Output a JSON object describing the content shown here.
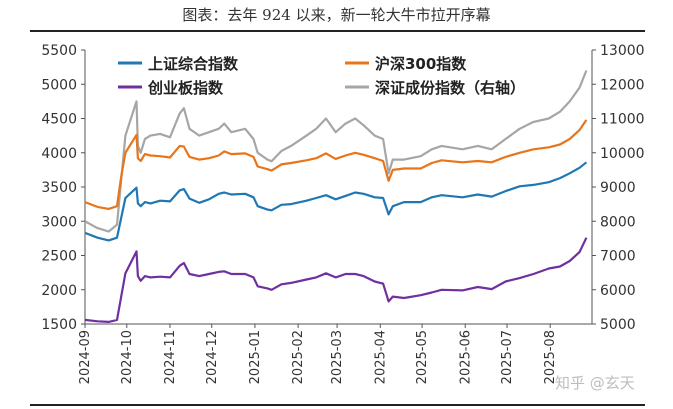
{
  "chart_data": {
    "type": "line",
    "title": "图表：去年 924 以来，新一轮大牛市拉开序幕",
    "y_left": {
      "ticks": [
        "5500",
        "5000",
        "4500",
        "4000",
        "3500",
        "3000",
        "2500",
        "2000",
        "1500"
      ],
      "ylim": [
        1500,
        5500
      ]
    },
    "y_right": {
      "ticks": [
        "13000",
        "12000",
        "11000",
        "10000",
        "9000",
        "8000",
        "7000",
        "6000",
        "5000"
      ],
      "ylim": [
        5000,
        13000
      ]
    },
    "x_ticks": [
      "2024-09",
      "2024-10",
      "2024-11",
      "2024-12",
      "2025-01",
      "2025-02",
      "2025-03",
      "2025-04",
      "2025-05",
      "2025-06",
      "2025-07",
      "2025-08"
    ],
    "legend_placement": "top",
    "grid": false,
    "series": [
      {
        "name": "上证综合指数",
        "axis": "left",
        "color": "#1f77b4",
        "points": [
          [
            "2024-09-01",
            2830
          ],
          [
            "2024-09-10",
            2760
          ],
          [
            "2024-09-18",
            2720
          ],
          [
            "2024-09-24",
            2760
          ],
          [
            "2024-09-27",
            3050
          ],
          [
            "2024-09-30",
            3340
          ],
          [
            "2024-10-08",
            3490
          ],
          [
            "2024-10-09",
            3260
          ],
          [
            "2024-10-11",
            3220
          ],
          [
            "2024-10-14",
            3280
          ],
          [
            "2024-10-18",
            3260
          ],
          [
            "2024-10-25",
            3300
          ],
          [
            "2024-11-01",
            3290
          ],
          [
            "2024-11-08",
            3450
          ],
          [
            "2024-11-11",
            3470
          ],
          [
            "2024-11-15",
            3330
          ],
          [
            "2024-11-22",
            3270
          ],
          [
            "2024-11-29",
            3320
          ],
          [
            "2024-12-06",
            3400
          ],
          [
            "2024-12-10",
            3420
          ],
          [
            "2024-12-15",
            3390
          ],
          [
            "2024-12-25",
            3400
          ],
          [
            "2024-12-31",
            3350
          ],
          [
            "2025-01-03",
            3220
          ],
          [
            "2025-01-10",
            3170
          ],
          [
            "2025-01-13",
            3160
          ],
          [
            "2025-01-20",
            3240
          ],
          [
            "2025-01-27",
            3250
          ],
          [
            "2025-02-07",
            3300
          ],
          [
            "2025-02-14",
            3340
          ],
          [
            "2025-02-21",
            3380
          ],
          [
            "2025-02-28",
            3320
          ],
          [
            "2025-03-07",
            3370
          ],
          [
            "2025-03-14",
            3420
          ],
          [
            "2025-03-20",
            3400
          ],
          [
            "2025-03-28",
            3350
          ],
          [
            "2025-04-03",
            3340
          ],
          [
            "2025-04-07",
            3100
          ],
          [
            "2025-04-10",
            3220
          ],
          [
            "2025-04-18",
            3280
          ],
          [
            "2025-04-30",
            3280
          ],
          [
            "2025-05-08",
            3350
          ],
          [
            "2025-05-15",
            3380
          ],
          [
            "2025-05-30",
            3350
          ],
          [
            "2025-06-10",
            3390
          ],
          [
            "2025-06-20",
            3360
          ],
          [
            "2025-06-30",
            3440
          ],
          [
            "2025-07-10",
            3510
          ],
          [
            "2025-07-20",
            3530
          ],
          [
            "2025-07-31",
            3570
          ],
          [
            "2025-08-08",
            3630
          ],
          [
            "2025-08-15",
            3700
          ],
          [
            "2025-08-22",
            3780
          ],
          [
            "2025-08-27",
            3860
          ]
        ]
      },
      {
        "name": "沪深300指数",
        "axis": "left",
        "color": "#e8751a",
        "points": [
          [
            "2024-09-01",
            3280
          ],
          [
            "2024-09-10",
            3210
          ],
          [
            "2024-09-18",
            3180
          ],
          [
            "2024-09-24",
            3220
          ],
          [
            "2024-09-27",
            3650
          ],
          [
            "2024-09-30",
            4000
          ],
          [
            "2024-10-08",
            4260
          ],
          [
            "2024-10-09",
            3920
          ],
          [
            "2024-10-11",
            3880
          ],
          [
            "2024-10-14",
            3980
          ],
          [
            "2024-10-18",
            3960
          ],
          [
            "2024-10-25",
            3950
          ],
          [
            "2024-11-01",
            3930
          ],
          [
            "2024-11-08",
            4100
          ],
          [
            "2024-11-11",
            4090
          ],
          [
            "2024-11-15",
            3940
          ],
          [
            "2024-11-22",
            3900
          ],
          [
            "2024-11-29",
            3920
          ],
          [
            "2024-12-06",
            3960
          ],
          [
            "2024-12-10",
            4020
          ],
          [
            "2024-12-15",
            3980
          ],
          [
            "2024-12-25",
            3990
          ],
          [
            "2024-12-31",
            3940
          ],
          [
            "2025-01-03",
            3800
          ],
          [
            "2025-01-10",
            3760
          ],
          [
            "2025-01-13",
            3740
          ],
          [
            "2025-01-20",
            3830
          ],
          [
            "2025-01-27",
            3850
          ],
          [
            "2025-02-07",
            3890
          ],
          [
            "2025-02-14",
            3920
          ],
          [
            "2025-02-21",
            3990
          ],
          [
            "2025-02-28",
            3910
          ],
          [
            "2025-03-07",
            3960
          ],
          [
            "2025-03-14",
            4000
          ],
          [
            "2025-03-20",
            3970
          ],
          [
            "2025-03-28",
            3920
          ],
          [
            "2025-04-03",
            3880
          ],
          [
            "2025-04-07",
            3590
          ],
          [
            "2025-04-10",
            3750
          ],
          [
            "2025-04-18",
            3770
          ],
          [
            "2025-04-30",
            3770
          ],
          [
            "2025-05-08",
            3850
          ],
          [
            "2025-05-15",
            3890
          ],
          [
            "2025-05-30",
            3860
          ],
          [
            "2025-06-10",
            3880
          ],
          [
            "2025-06-20",
            3860
          ],
          [
            "2025-06-30",
            3940
          ],
          [
            "2025-07-10",
            4000
          ],
          [
            "2025-07-20",
            4050
          ],
          [
            "2025-07-31",
            4080
          ],
          [
            "2025-08-08",
            4120
          ],
          [
            "2025-08-15",
            4200
          ],
          [
            "2025-08-22",
            4330
          ],
          [
            "2025-08-27",
            4480
          ]
        ]
      },
      {
        "name": "创业板指数",
        "axis": "left",
        "color": "#7030a0",
        "points": [
          [
            "2024-09-01",
            1560
          ],
          [
            "2024-09-10",
            1540
          ],
          [
            "2024-09-18",
            1530
          ],
          [
            "2024-09-24",
            1560
          ],
          [
            "2024-09-27",
            1900
          ],
          [
            "2024-09-30",
            2240
          ],
          [
            "2024-10-08",
            2560
          ],
          [
            "2024-10-09",
            2200
          ],
          [
            "2024-10-11",
            2130
          ],
          [
            "2024-10-14",
            2200
          ],
          [
            "2024-10-18",
            2180
          ],
          [
            "2024-10-25",
            2190
          ],
          [
            "2024-11-01",
            2180
          ],
          [
            "2024-11-08",
            2350
          ],
          [
            "2024-11-11",
            2390
          ],
          [
            "2024-11-15",
            2230
          ],
          [
            "2024-11-22",
            2200
          ],
          [
            "2024-11-29",
            2230
          ],
          [
            "2024-12-06",
            2260
          ],
          [
            "2024-12-10",
            2270
          ],
          [
            "2024-12-15",
            2230
          ],
          [
            "2024-12-25",
            2230
          ],
          [
            "2024-12-31",
            2180
          ],
          [
            "2025-01-03",
            2050
          ],
          [
            "2025-01-10",
            2020
          ],
          [
            "2025-01-13",
            2000
          ],
          [
            "2025-01-20",
            2080
          ],
          [
            "2025-01-27",
            2100
          ],
          [
            "2025-02-07",
            2150
          ],
          [
            "2025-02-14",
            2180
          ],
          [
            "2025-02-21",
            2240
          ],
          [
            "2025-02-28",
            2180
          ],
          [
            "2025-03-07",
            2230
          ],
          [
            "2025-03-14",
            2230
          ],
          [
            "2025-03-20",
            2200
          ],
          [
            "2025-03-28",
            2120
          ],
          [
            "2025-04-03",
            2090
          ],
          [
            "2025-04-07",
            1830
          ],
          [
            "2025-04-10",
            1900
          ],
          [
            "2025-04-18",
            1880
          ],
          [
            "2025-04-30",
            1920
          ],
          [
            "2025-05-08",
            1960
          ],
          [
            "2025-05-15",
            2000
          ],
          [
            "2025-05-30",
            1990
          ],
          [
            "2025-06-10",
            2040
          ],
          [
            "2025-06-20",
            2010
          ],
          [
            "2025-06-30",
            2120
          ],
          [
            "2025-07-10",
            2170
          ],
          [
            "2025-07-20",
            2230
          ],
          [
            "2025-07-31",
            2310
          ],
          [
            "2025-08-08",
            2340
          ],
          [
            "2025-08-15",
            2420
          ],
          [
            "2025-08-22",
            2550
          ],
          [
            "2025-08-27",
            2760
          ]
        ]
      },
      {
        "name": "深证成份指数（右轴）",
        "axis": "right",
        "color": "#a6a6a6",
        "points": [
          [
            "2024-09-01",
            8000
          ],
          [
            "2024-09-10",
            7800
          ],
          [
            "2024-09-18",
            7700
          ],
          [
            "2024-09-24",
            7900
          ],
          [
            "2024-09-27",
            9200
          ],
          [
            "2024-09-30",
            10500
          ],
          [
            "2024-10-08",
            11500
          ],
          [
            "2024-10-09",
            10200
          ],
          [
            "2024-10-11",
            10000
          ],
          [
            "2024-10-14",
            10400
          ],
          [
            "2024-10-18",
            10500
          ],
          [
            "2024-10-25",
            10550
          ],
          [
            "2024-11-01",
            10450
          ],
          [
            "2024-11-08",
            11150
          ],
          [
            "2024-11-11",
            11300
          ],
          [
            "2024-11-15",
            10700
          ],
          [
            "2024-11-22",
            10500
          ],
          [
            "2024-11-29",
            10600
          ],
          [
            "2024-12-06",
            10700
          ],
          [
            "2024-12-10",
            10850
          ],
          [
            "2024-12-15",
            10600
          ],
          [
            "2024-12-25",
            10700
          ],
          [
            "2024-12-31",
            10400
          ],
          [
            "2025-01-03",
            10000
          ],
          [
            "2025-01-10",
            9800
          ],
          [
            "2025-01-13",
            9750
          ],
          [
            "2025-01-20",
            10050
          ],
          [
            "2025-01-27",
            10200
          ],
          [
            "2025-02-07",
            10500
          ],
          [
            "2025-02-14",
            10700
          ],
          [
            "2025-02-21",
            11000
          ],
          [
            "2025-02-28",
            10600
          ],
          [
            "2025-03-07",
            10850
          ],
          [
            "2025-03-14",
            11000
          ],
          [
            "2025-03-20",
            10800
          ],
          [
            "2025-03-28",
            10500
          ],
          [
            "2025-04-03",
            10400
          ],
          [
            "2025-04-07",
            9400
          ],
          [
            "2025-04-10",
            9800
          ],
          [
            "2025-04-18",
            9800
          ],
          [
            "2025-04-30",
            9900
          ],
          [
            "2025-05-08",
            10100
          ],
          [
            "2025-05-15",
            10200
          ],
          [
            "2025-05-30",
            10100
          ],
          [
            "2025-06-10",
            10200
          ],
          [
            "2025-06-20",
            10100
          ],
          [
            "2025-06-30",
            10400
          ],
          [
            "2025-07-10",
            10700
          ],
          [
            "2025-07-20",
            10900
          ],
          [
            "2025-07-31",
            11000
          ],
          [
            "2025-08-08",
            11200
          ],
          [
            "2025-08-15",
            11500
          ],
          [
            "2025-08-22",
            11900
          ],
          [
            "2025-08-27",
            12400
          ]
        ]
      }
    ]
  },
  "watermark": "知乎 @玄天"
}
